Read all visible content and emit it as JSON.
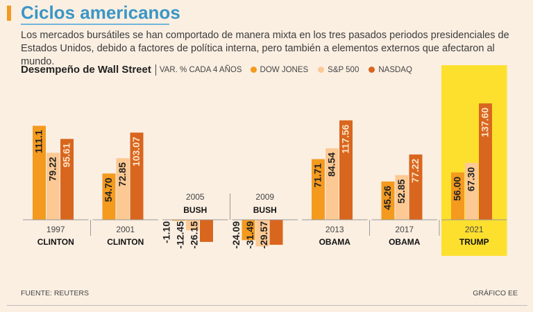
{
  "header": {
    "title": "Ciclos americanos",
    "subtitle": "Los mercados bursátiles se han comportado de manera mixta en los tres pasados periodos presidenciales de Estados Unidos, debido a factores de política interna, pero también a elementos externos que afectaron al mundo."
  },
  "chart_heading": "Desempeño de Wall Street",
  "chart_subheading": "VAR. % CADA 4 AÑOS",
  "legend": [
    {
      "label": "DOW JONES",
      "color": "#f39a1f"
    },
    {
      "label": "S&P 500",
      "color": "#fcc994"
    },
    {
      "label": "NASDAQ",
      "color": "#d9661f"
    }
  ],
  "highlight_color": "#fde02e",
  "chart_data": {
    "type": "bar",
    "title": "Desempeño de Wall Street",
    "ylabel": "VAR. % CADA 4 AÑOS",
    "categories": [
      {
        "year": "1997",
        "president": "CLINTON"
      },
      {
        "year": "2001",
        "president": "CLINTON"
      },
      {
        "year": "2005",
        "president": "BUSH"
      },
      {
        "year": "2009",
        "president": "BUSH"
      },
      {
        "year": "2013",
        "president": "OBAMA"
      },
      {
        "year": "2017",
        "president": "OBAMA"
      },
      {
        "year": "2021",
        "president": "TRUMP"
      }
    ],
    "series": [
      {
        "name": "DOW JONES",
        "values": [
          111.1,
          54.7,
          -1.1,
          -24.09,
          71.71,
          45.26,
          56.0
        ],
        "labels": [
          "111.1",
          "54.70",
          "-1.10",
          "-24.09",
          "71.71",
          "45.26",
          "56.00"
        ]
      },
      {
        "name": "S&P 500",
        "values": [
          79.22,
          72.85,
          -12.45,
          -31.49,
          84.54,
          52.85,
          67.3
        ],
        "labels": [
          "79.22",
          "72.85",
          "-12.45",
          "-31.49",
          "84.54",
          "52.85",
          "67.30"
        ]
      },
      {
        "name": "NASDAQ",
        "values": [
          95.61,
          103.07,
          -26.15,
          -29.57,
          117.56,
          77.22,
          137.6
        ],
        "labels": [
          "95.61",
          "103.07",
          "-26.15",
          "-29.57",
          "117.56",
          "77.22",
          "137.60"
        ]
      }
    ],
    "highlighted_category": "2021"
  },
  "footer": {
    "source": "FUENTE: REUTERS",
    "credit": "GRÁFICO EE"
  }
}
